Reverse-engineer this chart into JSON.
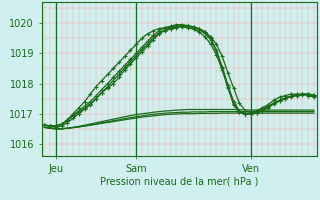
{
  "title": "Pression niveau de la mer( hPa )",
  "xlabel_ticks": [
    "Jeu",
    "Sam",
    "Ven"
  ],
  "ylabel_ticks": [
    1016,
    1017,
    1018,
    1019,
    1020
  ],
  "ylim": [
    1015.6,
    1020.7
  ],
  "xlim": [
    -0.5,
    47.5
  ],
  "background_color": "#cff0ee",
  "grid_color_v": "#ffaaaa",
  "grid_color_h": "#ffaaaa",
  "line_color": "#1a6b1a",
  "text_color": "#1a6b1a",
  "upper_line1": [
    1016.62,
    1016.58,
    1016.55,
    1016.6,
    1016.7,
    1016.85,
    1017.0,
    1017.15,
    1017.3,
    1017.5,
    1017.7,
    1017.85,
    1018.0,
    1018.2,
    1018.45,
    1018.65,
    1018.85,
    1019.05,
    1019.25,
    1019.45,
    1019.65,
    1019.75,
    1019.8,
    1019.85,
    1019.9,
    1019.9,
    1019.85,
    1019.8,
    1019.7,
    1019.55,
    1019.3,
    1018.9,
    1018.35,
    1017.85,
    1017.35,
    1017.1,
    1017.05,
    1017.1,
    1017.2,
    1017.3,
    1017.45,
    1017.55,
    1017.6,
    1017.65,
    1017.65,
    1017.65,
    1017.6,
    1017.55
  ],
  "upper_line2": [
    1016.62,
    1016.6,
    1016.6,
    1016.65,
    1016.8,
    1017.0,
    1017.2,
    1017.4,
    1017.65,
    1017.9,
    1018.1,
    1018.3,
    1018.5,
    1018.7,
    1018.9,
    1019.1,
    1019.3,
    1019.5,
    1019.65,
    1019.75,
    1019.82,
    1019.85,
    1019.87,
    1019.88,
    1019.88,
    1019.85,
    1019.8,
    1019.7,
    1019.55,
    1019.3,
    1018.95,
    1018.45,
    1017.85,
    1017.3,
    1017.05,
    1017.0,
    1017.0,
    1017.05,
    1017.15,
    1017.25,
    1017.35,
    1017.45,
    1017.52,
    1017.58,
    1017.62,
    1017.65,
    1017.65,
    1017.62
  ],
  "upper_line3": [
    1016.62,
    1016.6,
    1016.6,
    1016.65,
    1016.78,
    1016.95,
    1017.1,
    1017.25,
    1017.4,
    1017.6,
    1017.8,
    1018.0,
    1018.2,
    1018.4,
    1018.6,
    1018.8,
    1019.0,
    1019.2,
    1019.4,
    1019.6,
    1019.75,
    1019.85,
    1019.9,
    1019.95,
    1019.95,
    1019.92,
    1019.88,
    1019.82,
    1019.72,
    1019.5,
    1019.1,
    1018.55,
    1017.95,
    1017.4,
    1017.1,
    1017.0,
    1017.0,
    1017.02,
    1017.1,
    1017.2,
    1017.32,
    1017.42,
    1017.5,
    1017.56,
    1017.6,
    1017.63,
    1017.63,
    1017.6
  ],
  "upper_line4": [
    1016.62,
    1016.6,
    1016.6,
    1016.65,
    1016.78,
    1016.93,
    1017.05,
    1017.18,
    1017.33,
    1017.5,
    1017.7,
    1017.9,
    1018.1,
    1018.3,
    1018.52,
    1018.72,
    1018.92,
    1019.12,
    1019.32,
    1019.52,
    1019.68,
    1019.78,
    1019.85,
    1019.9,
    1019.92,
    1019.9,
    1019.86,
    1019.78,
    1019.66,
    1019.45,
    1019.05,
    1018.52,
    1017.88,
    1017.32,
    1017.05,
    1017.0,
    1017.0,
    1017.03,
    1017.12,
    1017.22,
    1017.35,
    1017.44,
    1017.52,
    1017.58,
    1017.62,
    1017.65,
    1017.65,
    1017.62
  ],
  "lower_line1": [
    1016.55,
    1016.52,
    1016.5,
    1016.5,
    1016.52,
    1016.55,
    1016.58,
    1016.62,
    1016.66,
    1016.7,
    1016.74,
    1016.78,
    1016.82,
    1016.86,
    1016.9,
    1016.94,
    1016.97,
    1017.0,
    1017.02,
    1017.05,
    1017.07,
    1017.09,
    1017.1,
    1017.12,
    1017.13,
    1017.14,
    1017.14,
    1017.14,
    1017.14,
    1017.14,
    1017.14,
    1017.14,
    1017.14,
    1017.14,
    1017.13,
    1017.13,
    1017.12,
    1017.12,
    1017.12,
    1017.12,
    1017.12,
    1017.12,
    1017.12,
    1017.12,
    1017.12,
    1017.12,
    1017.12,
    1017.12
  ],
  "lower_line2": [
    1016.55,
    1016.52,
    1016.5,
    1016.5,
    1016.52,
    1016.54,
    1016.57,
    1016.6,
    1016.63,
    1016.66,
    1016.7,
    1016.73,
    1016.77,
    1016.8,
    1016.84,
    1016.87,
    1016.9,
    1016.93,
    1016.96,
    1016.98,
    1017.0,
    1017.02,
    1017.03,
    1017.04,
    1017.05,
    1017.05,
    1017.06,
    1017.06,
    1017.06,
    1017.07,
    1017.07,
    1017.07,
    1017.07,
    1017.07,
    1017.07,
    1017.07,
    1017.07,
    1017.07,
    1017.07,
    1017.07,
    1017.07,
    1017.07,
    1017.07,
    1017.07,
    1017.07,
    1017.07,
    1017.07,
    1017.07
  ],
  "lower_line3": [
    1016.55,
    1016.52,
    1016.5,
    1016.5,
    1016.52,
    1016.54,
    1016.56,
    1016.59,
    1016.62,
    1016.65,
    1016.68,
    1016.71,
    1016.74,
    1016.77,
    1016.8,
    1016.83,
    1016.86,
    1016.89,
    1016.91,
    1016.93,
    1016.95,
    1016.97,
    1016.98,
    1016.99,
    1017.0,
    1017.0,
    1017.0,
    1017.01,
    1017.01,
    1017.01,
    1017.01,
    1017.02,
    1017.02,
    1017.02,
    1017.02,
    1017.02,
    1017.02,
    1017.02,
    1017.02,
    1017.02,
    1017.02,
    1017.02,
    1017.02,
    1017.02,
    1017.02,
    1017.02,
    1017.02,
    1017.02
  ],
  "n_points": 48,
  "jeu_idx": 2,
  "sam_idx": 16,
  "ven_idx": 36,
  "marker": "+",
  "markersize": 3.5,
  "linewidth": 0.9
}
